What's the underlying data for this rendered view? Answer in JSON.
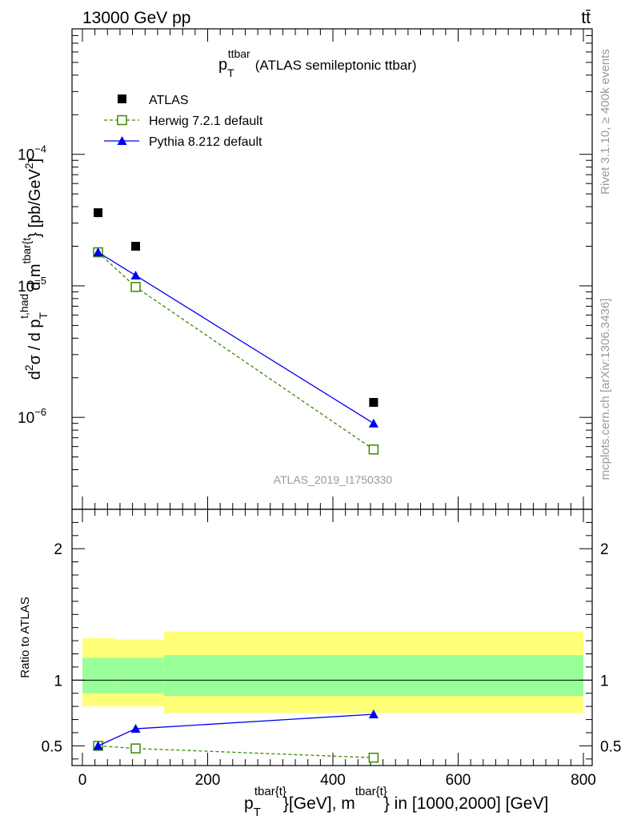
{
  "header": {
    "left": "13000 GeV pp",
    "right": "tt̄"
  },
  "side_labels": {
    "rivet": "Rivet 3.1.10, ≥ 400k events",
    "source": "mcplots.cern.ch [arXiv:1306.3436]"
  },
  "analysis_id": "ATLAS_2019_I1750330",
  "chart_data": [
    {
      "type": "line",
      "panel": "main",
      "title": {
        "base": "p",
        "sub": "T",
        "sup": "ttbar",
        "rest": "(ATLAS semileptonic ttbar)"
      },
      "ylabel": {
        "prefix": "d",
        "sup2": "2",
        "sigma": "σ / d p",
        "sub_T": "T",
        "sup_thad": "t,had",
        "mid": "d m",
        "sup_mt": "tbar{t",
        "suffix": "} [pb/GeV",
        "sup_unit": "2",
        "end": "]"
      },
      "yscale": "log",
      "ylim": [
        2e-07,
        0.0009
      ],
      "xlim": [
        -25,
        810
      ],
      "y_tick_labels": [
        {
          "value": 0.0001,
          "base": "10",
          "exp": "−4"
        },
        {
          "value": 1e-05,
          "base": "10",
          "exp": "−5"
        },
        {
          "value": 1e-06,
          "base": "10",
          "exp": "−6"
        }
      ],
      "legend": {
        "placement": "top-left",
        "entries": [
          "ATLAS",
          "Herwig 7.2.1 default",
          "Pythia 8.212 default"
        ]
      },
      "series": [
        {
          "name": "ATLAS",
          "marker": "square",
          "color": "#000000",
          "x": [
            25,
            85,
            465
          ],
          "y": [
            3.6e-05,
            2e-05,
            1.3e-06
          ]
        },
        {
          "name": "Herwig 7.2.1 default",
          "marker": "open-square",
          "color": "#3a8a00",
          "dashed": true,
          "x": [
            25,
            85,
            465
          ],
          "y": [
            1.8e-05,
            9.8e-06,
            5.7e-07
          ]
        },
        {
          "name": "Pythia 8.212 default",
          "marker": "triangle",
          "color": "#0000ee",
          "x": [
            25,
            85,
            465
          ],
          "y": [
            1.8e-05,
            1.2e-05,
            9e-07
          ]
        }
      ]
    },
    {
      "type": "line",
      "panel": "ratio",
      "ylabel": "Ratio to ATLAS",
      "ylim": [
        0.35,
        2.3
      ],
      "y_ticks": [
        0.5,
        1,
        2
      ],
      "y_tick_labels": [
        "0.5",
        "1",
        "2"
      ],
      "x_ticks": [
        0,
        200,
        400,
        600,
        800
      ],
      "x_tick_labels": [
        "0",
        "200",
        "400",
        "600",
        "800"
      ],
      "xlabel": {
        "p": "p",
        "sub_T1": "T",
        "sup1": "tbar{t}",
        "mid": "}[GeV], m",
        "sup2": "tbar{t}",
        "rest": "} in [1000,2000] [GeV]"
      },
      "bands": [
        {
          "x0": 0,
          "x1": 50,
          "yellow": [
            0.8,
            1.32
          ],
          "green": [
            0.9,
            1.17
          ]
        },
        {
          "x0": 50,
          "x1": 130,
          "yellow": [
            0.8,
            1.31
          ],
          "green": [
            0.9,
            1.17
          ]
        },
        {
          "x0": 130,
          "x1": 800,
          "yellow": [
            0.75,
            1.37
          ],
          "green": [
            0.88,
            1.19
          ]
        }
      ],
      "reference_line": 1,
      "series": [
        {
          "name": "Herwig 7.2.1 default",
          "marker": "open-square",
          "color": "#3a8a00",
          "dashed": true,
          "x": [
            25,
            85,
            465
          ],
          "y": [
            0.5,
            0.48,
            0.41
          ]
        },
        {
          "name": "Pythia 8.212 default",
          "marker": "triangle",
          "color": "#0000ee",
          "x": [
            25,
            85,
            465
          ],
          "y": [
            0.5,
            0.63,
            0.74
          ],
          "err": [
            0.03,
            0.02,
            0.03
          ]
        }
      ]
    }
  ]
}
